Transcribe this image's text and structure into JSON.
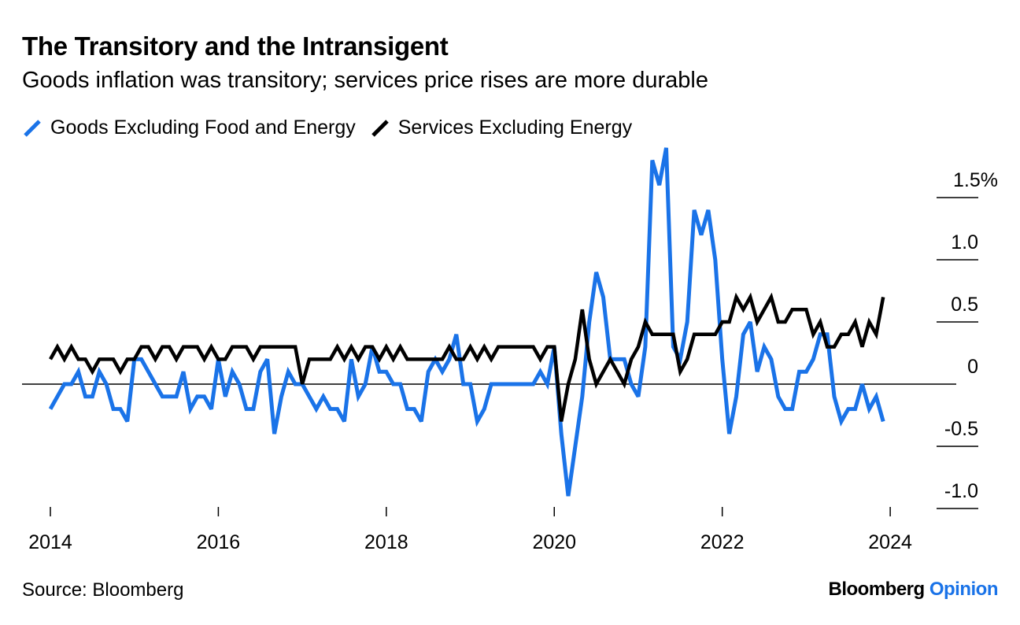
{
  "header": {
    "title": "The Transitory and the Intransigent",
    "subtitle": "Goods inflation was transitory; services price rises are more durable"
  },
  "footer": {
    "source": "Source: Bloomberg",
    "brand_main": "Bloomberg",
    "brand_accent": "Opinion"
  },
  "colors": {
    "goods": "#1a73e8",
    "services": "#000000",
    "brand_accent": "#1a73e8"
  },
  "chart_data": {
    "type": "line",
    "title": "The Transitory and the Intransigent",
    "subtitle": "Goods inflation was transitory; services price rises are more durable",
    "xlabel": "",
    "ylabel": "",
    "xlim": [
      "2014-01",
      "2024-02"
    ],
    "ylim": [
      -1.0,
      1.5
    ],
    "x_ticks": [
      "2014",
      "2016",
      "2018",
      "2020",
      "2022",
      "2024"
    ],
    "y_ticks": [
      {
        "value": 1.5,
        "label": "1.5%"
      },
      {
        "value": 1.0,
        "label": "1.0"
      },
      {
        "value": 0.5,
        "label": "0.5"
      },
      {
        "value": 0,
        "label": "0"
      },
      {
        "value": -0.5,
        "label": "-0.5"
      },
      {
        "value": -1.0,
        "label": "-1.0"
      }
    ],
    "legend_position": "top-left",
    "grid": false,
    "series": [
      {
        "name": "Goods Excluding Food and Energy",
        "color": "#1a73e8",
        "start": "2014-01",
        "values": [
          -0.2,
          -0.1,
          0,
          0,
          0.1,
          -0.1,
          -0.1,
          0.1,
          0,
          -0.2,
          -0.2,
          -0.3,
          0.2,
          0.2,
          0.1,
          0,
          -0.1,
          -0.1,
          -0.1,
          0.1,
          -0.2,
          -0.1,
          -0.1,
          -0.2,
          0.2,
          -0.1,
          0.1,
          0,
          -0.2,
          -0.2,
          0.1,
          0.2,
          -0.4,
          -0.1,
          0.1,
          0,
          0,
          -0.1,
          -0.2,
          -0.1,
          -0.2,
          -0.2,
          -0.3,
          0.2,
          -0.1,
          0,
          0.3,
          0.1,
          0.1,
          0,
          0,
          -0.2,
          -0.2,
          -0.3,
          0.1,
          0.2,
          0.1,
          0.2,
          0.4,
          0,
          0,
          -0.3,
          -0.2,
          0,
          0,
          0,
          0,
          0,
          0,
          0,
          0.1,
          0,
          0.3,
          -0.4,
          -0.9,
          -0.5,
          -0.1,
          0.5,
          0.9,
          0.7,
          0.2,
          0.2,
          0.2,
          0,
          -0.1,
          0.3,
          1.8,
          1.6,
          1.9,
          0.3,
          0.2,
          0.5,
          1.4,
          1.2,
          1.4,
          1,
          0.2,
          -0.4,
          -0.1,
          0.4,
          0.5,
          0.1,
          0.3,
          0.2,
          -0.1,
          -0.2,
          -0.2,
          0.1,
          0.1,
          0.2,
          0.4,
          0.4,
          -0.1,
          -0.3,
          -0.2,
          -0.2,
          0,
          -0.2,
          -0.1,
          -0.3
        ]
      },
      {
        "name": "Services Excluding Energy",
        "color": "#000000",
        "start": "2014-01",
        "values": [
          0.2,
          0.3,
          0.2,
          0.3,
          0.2,
          0.2,
          0.1,
          0.2,
          0.2,
          0.2,
          0.1,
          0.2,
          0.2,
          0.3,
          0.3,
          0.2,
          0.3,
          0.3,
          0.2,
          0.3,
          0.3,
          0.3,
          0.2,
          0.3,
          0.2,
          0.2,
          0.3,
          0.3,
          0.3,
          0.2,
          0.3,
          0.3,
          0.3,
          0.3,
          0.3,
          0.3,
          0,
          0.2,
          0.2,
          0.2,
          0.2,
          0.3,
          0.2,
          0.3,
          0.2,
          0.3,
          0.3,
          0.2,
          0.3,
          0.2,
          0.3,
          0.2,
          0.2,
          0.2,
          0.2,
          0.2,
          0.2,
          0.3,
          0.2,
          0.2,
          0.3,
          0.2,
          0.3,
          0.2,
          0.3,
          0.3,
          0.3,
          0.3,
          0.3,
          0.3,
          0.2,
          0.3,
          0.3,
          -0.3,
          0,
          0.2,
          0.6,
          0.2,
          0,
          0.1,
          0.2,
          0.1,
          0,
          0.2,
          0.3,
          0.5,
          0.4,
          0.4,
          0.4,
          0.4,
          0.1,
          0.2,
          0.4,
          0.4,
          0.4,
          0.4,
          0.5,
          0.5,
          0.7,
          0.6,
          0.7,
          0.5,
          0.6,
          0.7,
          0.5,
          0.5,
          0.6,
          0.6,
          0.6,
          0.4,
          0.5,
          0.3,
          0.3,
          0.4,
          0.4,
          0.5,
          0.3,
          0.5,
          0.4,
          0.7
        ]
      }
    ]
  }
}
